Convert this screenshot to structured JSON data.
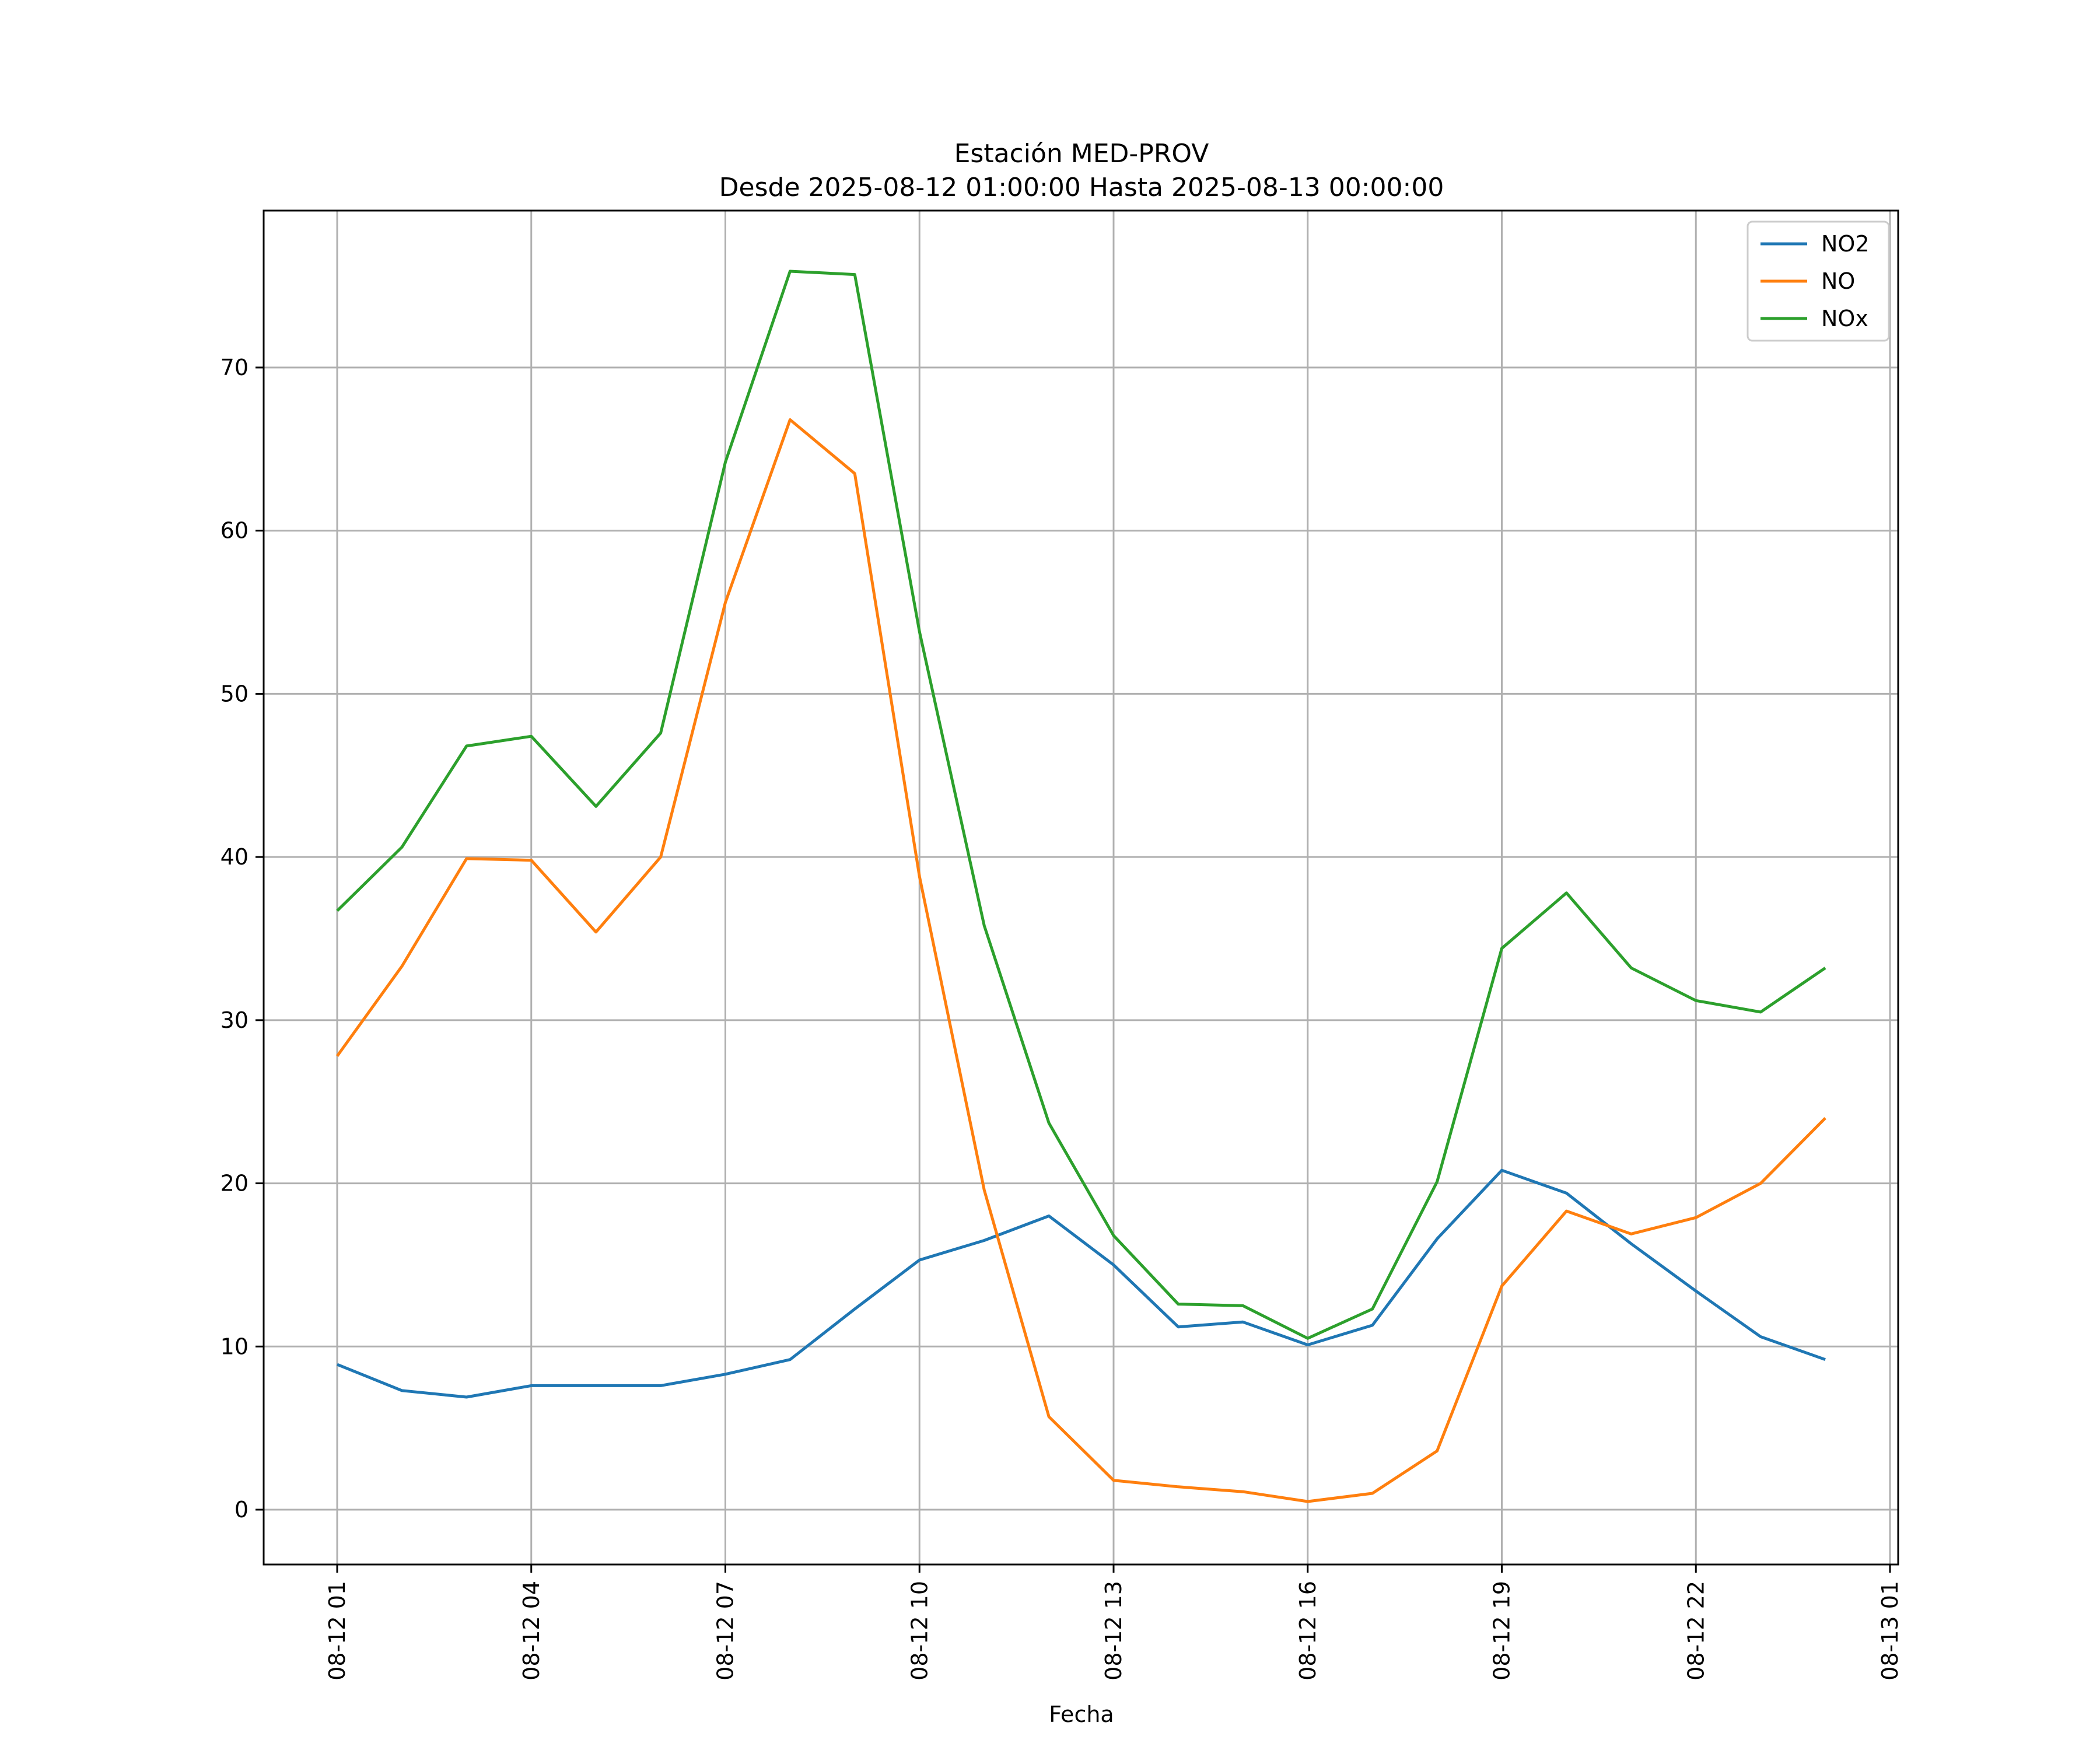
{
  "chart_data": {
    "type": "line",
    "title": "Estación MED-PROV",
    "subtitle": "Desde 2025-08-12 01:00:00 Hasta 2025-08-13 00:00:00",
    "xlabel": "Fecha",
    "ylabel": "",
    "x": [
      "08-12 01",
      "08-12 02",
      "08-12 03",
      "08-12 04",
      "08-12 05",
      "08-12 06",
      "08-12 07",
      "08-12 08",
      "08-12 09",
      "08-12 10",
      "08-12 11",
      "08-12 12",
      "08-12 13",
      "08-12 14",
      "08-12 15",
      "08-12 16",
      "08-12 17",
      "08-12 18",
      "08-12 19",
      "08-12 20",
      "08-12 21",
      "08-12 22",
      "08-12 23",
      "08-13 00"
    ],
    "x_ticks": [
      "08-12 01",
      "08-12 04",
      "08-12 07",
      "08-12 10",
      "08-12 13",
      "08-12 16",
      "08-12 19",
      "08-12 22",
      "08-13 01"
    ],
    "y_ticks": [
      0,
      10,
      20,
      30,
      40,
      50,
      60,
      70
    ],
    "ylim": [
      -3.4,
      79.6
    ],
    "xlim": [
      "08-12 00",
      "08-13 01"
    ],
    "grid": true,
    "legend": "top-right",
    "series": [
      {
        "name": "NO2",
        "color": "#1f77b4",
        "values": [
          8.9,
          7.3,
          6.9,
          7.6,
          7.6,
          7.6,
          8.3,
          9.2,
          12.3,
          15.3,
          16.5,
          18.0,
          15.0,
          11.2,
          11.5,
          10.1,
          11.3,
          16.6,
          20.8,
          19.4,
          16.3,
          13.4,
          10.6,
          9.2
        ]
      },
      {
        "name": "NO",
        "color": "#ff7f0e",
        "values": [
          27.8,
          33.3,
          39.9,
          39.8,
          35.4,
          40.0,
          55.6,
          66.8,
          63.5,
          38.8,
          19.6,
          5.7,
          1.8,
          1.4,
          1.1,
          0.5,
          1.0,
          3.6,
          13.7,
          18.3,
          16.9,
          17.9,
          20.0,
          24.0
        ]
      },
      {
        "name": "NOx",
        "color": "#2ca02c",
        "values": [
          36.7,
          40.6,
          46.8,
          47.4,
          43.1,
          47.6,
          64.2,
          75.9,
          75.7,
          53.8,
          35.8,
          23.7,
          16.8,
          12.6,
          12.5,
          10.5,
          12.3,
          20.1,
          34.4,
          37.8,
          33.2,
          31.2,
          30.5,
          33.2
        ]
      }
    ]
  }
}
